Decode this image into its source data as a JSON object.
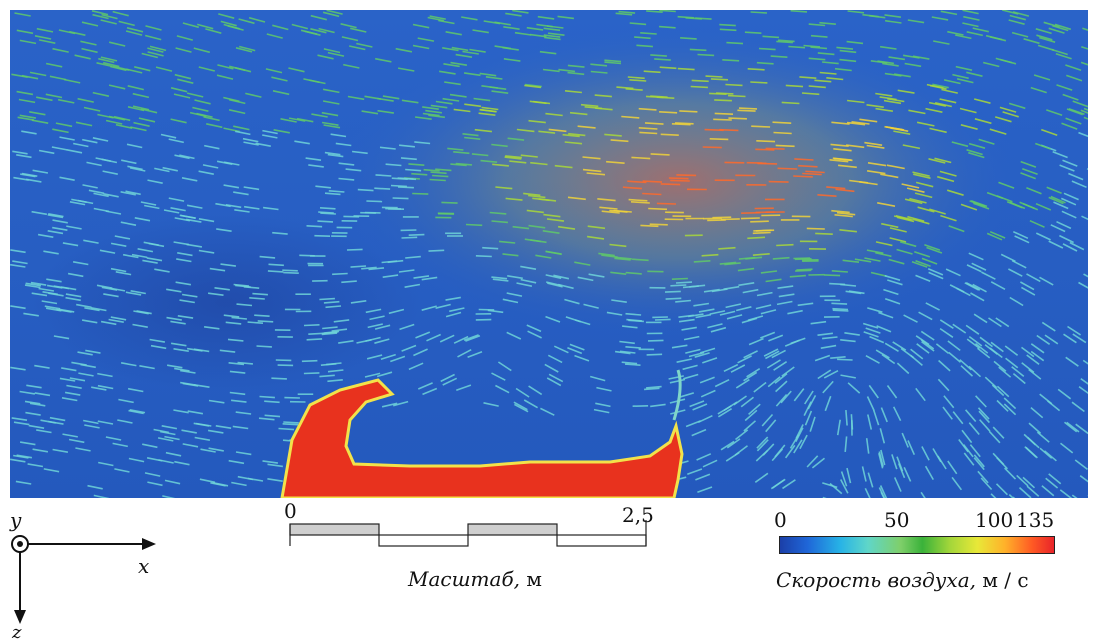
{
  "axes": {
    "y": "y",
    "x": "x",
    "z": "z"
  },
  "scale_bar": {
    "start": "0",
    "end": "2,5",
    "caption": "Масштаб,",
    "unit": "м"
  },
  "colorbar": {
    "ticks": [
      "0",
      "50",
      "100",
      "135"
    ],
    "caption": "Скорость воздуха,",
    "unit": "м / с",
    "colors": [
      "#1b3fa8",
      "#27b3e6",
      "#3ab23a",
      "#e8e838",
      "#ff5a24",
      "#e8242a"
    ]
  },
  "field_colors": {
    "background": "#2a5fc4",
    "obstacle": "#e8321e",
    "obstacle_edge": "#f2e24a"
  }
}
